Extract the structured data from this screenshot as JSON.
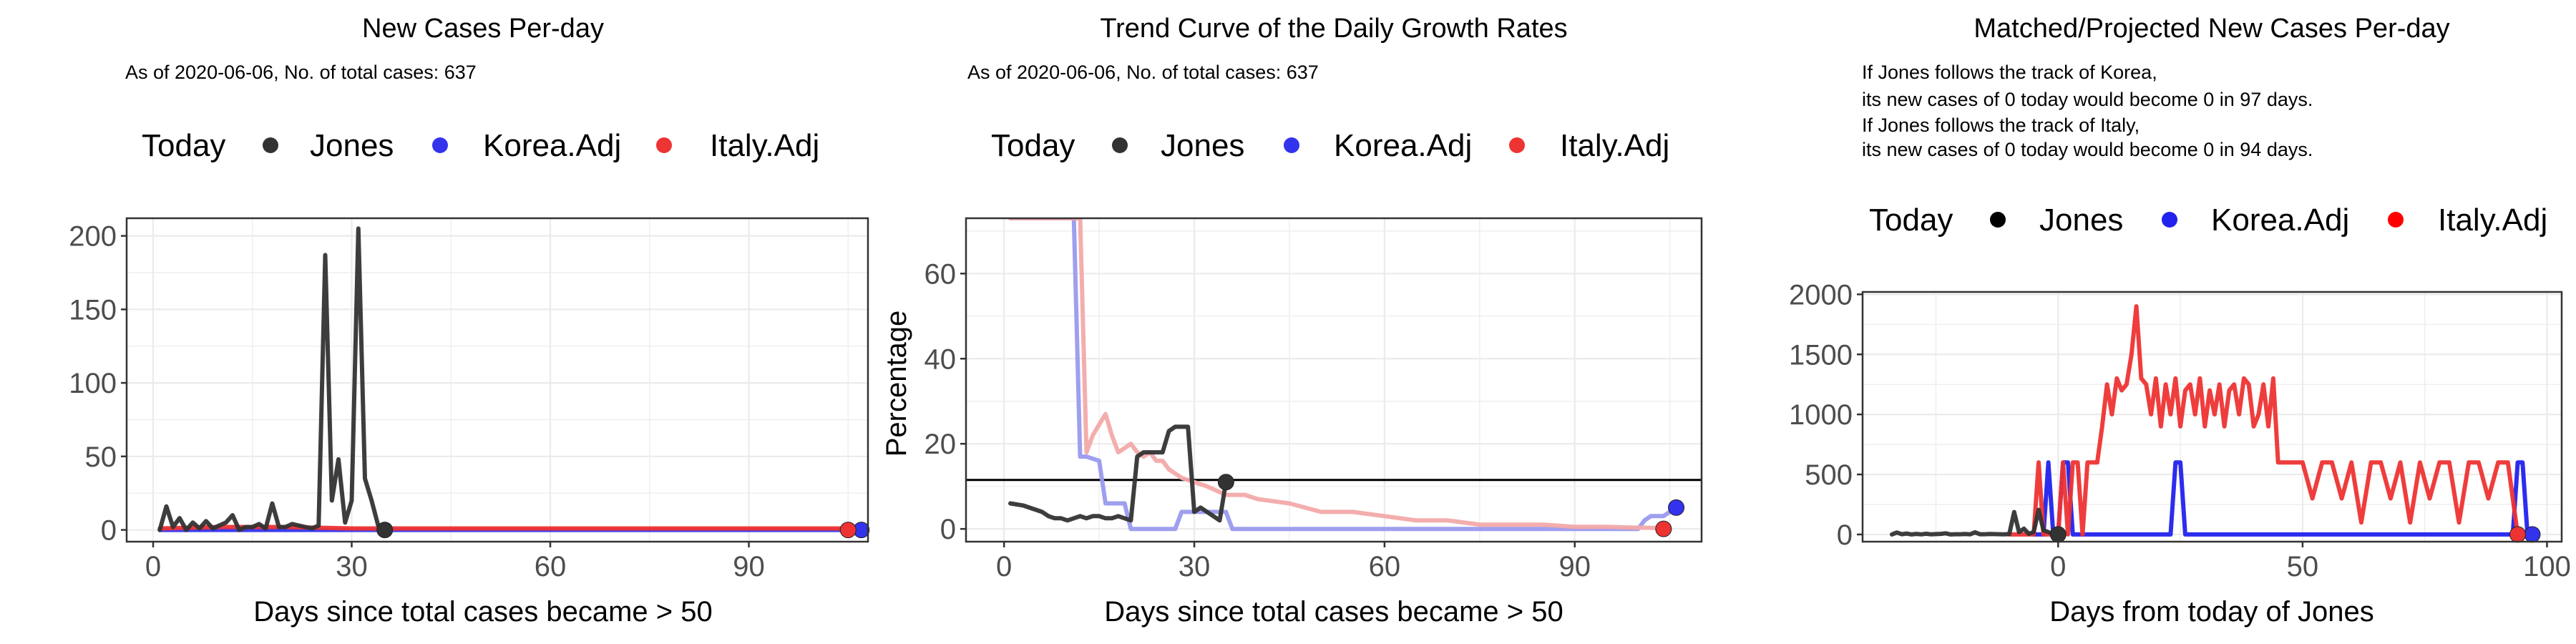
{
  "colors": {
    "jones": "#333333",
    "korea": "#3333ee",
    "italy": "#ee3333",
    "today_dot": "#000000",
    "grid": "#e8e8e8"
  },
  "legend": {
    "title": "Today",
    "items": [
      "Jones",
      "Korea.Adj",
      "Italy.Adj"
    ]
  },
  "chart_data": [
    {
      "type": "line",
      "title": "New Cases Per-day",
      "subtitle": "As of 2020-06-06, No. of total cases: 637",
      "xlabel": "Days since total cases became > 50",
      "ylabel": "",
      "xlim": [
        -4,
        108
      ],
      "ylim": [
        -8,
        212
      ],
      "xticks": [
        0,
        30,
        60,
        90
      ],
      "yticks": [
        0,
        50,
        100,
        150,
        200
      ],
      "grid": true,
      "legend_position": "top",
      "series": [
        {
          "name": "Jones",
          "color": "#333333",
          "x": [
            1,
            2,
            3,
            4,
            5,
            6,
            7,
            8,
            9,
            10,
            11,
            12,
            13,
            14,
            15,
            16,
            17,
            18,
            19,
            20,
            21,
            22,
            23,
            24,
            25,
            26,
            27,
            28,
            29,
            30,
            31,
            32,
            33,
            34,
            35
          ],
          "y": [
            0,
            16,
            2,
            8,
            0,
            5,
            1,
            6,
            1,
            3,
            5,
            10,
            0,
            2,
            2,
            4,
            1,
            18,
            2,
            2,
            4,
            3,
            2,
            1,
            3,
            187,
            20,
            48,
            5,
            20,
            205,
            35,
            20,
            3,
            0
          ]
        },
        {
          "name": "Korea.Adj",
          "color": "#3333ee",
          "x": [
            1,
            10,
            20,
            30,
            40,
            50,
            60,
            70,
            80,
            90,
            100,
            107
          ],
          "y": [
            0,
            0,
            0,
            0,
            0,
            0,
            0,
            0,
            0,
            0,
            0,
            0
          ]
        },
        {
          "name": "Italy.Adj",
          "color": "#ee3333",
          "x": [
            1,
            10,
            20,
            30,
            40,
            50,
            60,
            70,
            80,
            90,
            100,
            105
          ],
          "y": [
            1,
            2,
            2,
            1,
            1,
            1,
            1,
            1,
            1,
            1,
            1,
            1
          ]
        }
      ],
      "today_points": [
        {
          "series": "Jones",
          "x": 35,
          "y": 0
        },
        {
          "series": "Korea.Adj",
          "x": 107,
          "y": 0
        },
        {
          "series": "Italy.Adj",
          "x": 105,
          "y": 0
        }
      ]
    },
    {
      "type": "line",
      "title": "Trend Curve of the Daily Growth Rates",
      "subtitle": "As of 2020-06-06, No. of total cases: 637",
      "xlabel": "Days since total cases became > 50",
      "ylabel": "Percentage",
      "xlim": [
        -6,
        110
      ],
      "ylim": [
        -3,
        73
      ],
      "xticks": [
        0,
        30,
        60,
        90
      ],
      "yticks": [
        0,
        20,
        40,
        60
      ],
      "grid": true,
      "legend_position": "top",
      "hline": 11.5,
      "series": [
        {
          "name": "Jones",
          "color": "#333333",
          "x": [
            1,
            3,
            4,
            5,
            6,
            7,
            8,
            9,
            10,
            11,
            12,
            13,
            14,
            15,
            16,
            17,
            18,
            19,
            20,
            21,
            22,
            23,
            24,
            25,
            26,
            27,
            28,
            29,
            30,
            31,
            32,
            33,
            34,
            35
          ],
          "y": [
            6,
            5.5,
            5,
            4.5,
            4,
            3,
            2.5,
            2.5,
            2,
            2.5,
            3,
            2.5,
            3,
            3,
            2.5,
            2.5,
            3,
            2.5,
            2,
            17,
            18,
            18,
            18,
            18,
            23,
            24,
            24,
            24,
            4,
            5,
            4,
            3,
            2,
            11
          ]
        },
        {
          "name": "Korea.Adj",
          "color": "#9a9aee",
          "x": [
            1,
            11,
            12,
            13,
            15,
            16,
            19,
            20,
            24,
            27,
            28,
            31,
            32,
            35,
            36,
            40,
            50,
            60,
            70,
            80,
            90,
            100,
            101,
            102,
            104,
            106
          ],
          "y": [
            73,
            73,
            17,
            17,
            16,
            6,
            6,
            0,
            0,
            0,
            4,
            4,
            4,
            4,
            0,
            0,
            0,
            0,
            0,
            0,
            0,
            0,
            2,
            3,
            3,
            5
          ]
        },
        {
          "name": "Italy.Adj",
          "color": "#f3a9a9",
          "x": [
            1,
            12,
            13,
            14,
            16,
            17,
            18,
            19,
            20,
            21,
            22,
            23,
            24,
            25,
            26,
            27,
            28,
            30,
            32,
            35,
            38,
            40,
            45,
            50,
            55,
            60,
            65,
            70,
            75,
            80,
            85,
            90,
            95,
            100,
            104,
            105
          ],
          "y": [
            73,
            73,
            18,
            22,
            27,
            22,
            18,
            19,
            20,
            18,
            17,
            18,
            16,
            16,
            14,
            13,
            12,
            11,
            10,
            8,
            8,
            7,
            6,
            4,
            4,
            3,
            2,
            2,
            1,
            1,
            1,
            0.5,
            0.5,
            0.3,
            0.2,
            0
          ]
        }
      ],
      "today_points": [
        {
          "series": "Jones",
          "x": 35,
          "y": 11
        },
        {
          "series": "Korea.Adj",
          "x": 106,
          "y": 5
        },
        {
          "series": "Italy.Adj",
          "x": 104,
          "y": 0
        }
      ]
    },
    {
      "type": "line",
      "title": "Matched/Projected New Cases Per-day",
      "annotations": [
        "If Jones follows the track of Korea,",
        "its new cases of 0 today would become 0 in 97 days.",
        "If Jones follows the track of Italy,",
        "its new cases of 0 today would become 0 in 94 days."
      ],
      "xlabel": "Days from today of Jones",
      "ylabel": "",
      "xlim": [
        -40,
        103
      ],
      "ylim": [
        -60,
        2020
      ],
      "xticks": [
        0,
        50,
        100
      ],
      "yticks": [
        0,
        500,
        1000,
        1500,
        2000
      ],
      "grid": true,
      "legend_position": "top",
      "series": [
        {
          "name": "Jones",
          "color": "#333333",
          "dash": false,
          "x": [
            -34,
            -33,
            -32,
            -31,
            -30,
            -29,
            -28,
            -27,
            -26,
            -25,
            -24,
            -23,
            -22,
            -21,
            -20,
            -19,
            -18,
            -17,
            -16,
            -15,
            -14,
            -13,
            -12,
            -11,
            -10,
            -9,
            -8,
            -7,
            -6,
            -5,
            -4,
            -3,
            -2,
            -1,
            0
          ],
          "y": [
            0,
            16,
            2,
            8,
            0,
            5,
            1,
            6,
            1,
            3,
            5,
            10,
            0,
            2,
            2,
            4,
            1,
            18,
            2,
            2,
            4,
            3,
            2,
            1,
            3,
            187,
            20,
            48,
            5,
            20,
            205,
            35,
            20,
            3,
            0
          ]
        },
        {
          "name": "Korea.Adj",
          "color": "#2222ee",
          "dash": false,
          "x": [
            -5,
            -3,
            -2,
            -1,
            0,
            1,
            2,
            3,
            22,
            23,
            24,
            25,
            26,
            27,
            92,
            93,
            94,
            95,
            96,
            97
          ],
          "y": [
            0,
            0,
            600,
            0,
            0,
            600,
            600,
            0,
            0,
            0,
            600,
            600,
            0,
            0,
            0,
            0,
            600,
            600,
            0,
            0
          ]
        },
        {
          "name": "Italy.Adj",
          "color": "#ee3333",
          "dash": false,
          "x": [
            -10,
            -8,
            -7,
            -6,
            -5,
            -4,
            -3,
            -2,
            -1,
            0,
            1,
            2,
            3,
            4,
            5,
            6,
            7,
            8,
            9,
            10,
            11,
            12,
            13,
            14,
            15,
            16,
            17,
            18,
            19,
            20,
            21,
            22,
            23,
            24,
            25,
            26,
            27,
            28,
            29,
            30,
            31,
            32,
            33,
            34,
            35,
            36,
            37,
            38,
            39,
            40,
            41,
            42,
            43,
            44,
            45,
            46,
            47,
            48,
            49,
            50,
            52,
            54,
            56,
            58,
            60,
            62,
            64,
            66,
            68,
            70,
            72,
            74,
            76,
            78,
            80,
            82,
            84,
            86,
            88,
            90,
            92,
            94
          ],
          "y": [
            0,
            0,
            0,
            0,
            0,
            600,
            0,
            0,
            0,
            0,
            600,
            0,
            600,
            600,
            0,
            600,
            600,
            600,
            900,
            1250,
            1000,
            1300,
            1200,
            1250,
            1500,
            1900,
            1300,
            1250,
            1000,
            1300,
            900,
            1250,
            1000,
            1300,
            900,
            1200,
            1250,
            1000,
            1300,
            900,
            1200,
            1000,
            1250,
            900,
            1200,
            1250,
            1000,
            1300,
            1250,
            900,
            1000,
            1250,
            900,
            1300,
            600,
            600,
            600,
            600,
            600,
            600,
            300,
            600,
            600,
            300,
            600,
            100,
            600,
            600,
            300,
            600,
            100,
            600,
            300,
            600,
            600,
            100,
            600,
            600,
            300,
            600,
            600,
            0
          ]
        }
      ],
      "today_points": [
        {
          "series": "Jones",
          "x": 0,
          "y": 0
        },
        {
          "series": "Korea.Adj",
          "x": 97,
          "y": 0
        },
        {
          "series": "Italy.Adj",
          "x": 94,
          "y": 0
        }
      ]
    }
  ]
}
